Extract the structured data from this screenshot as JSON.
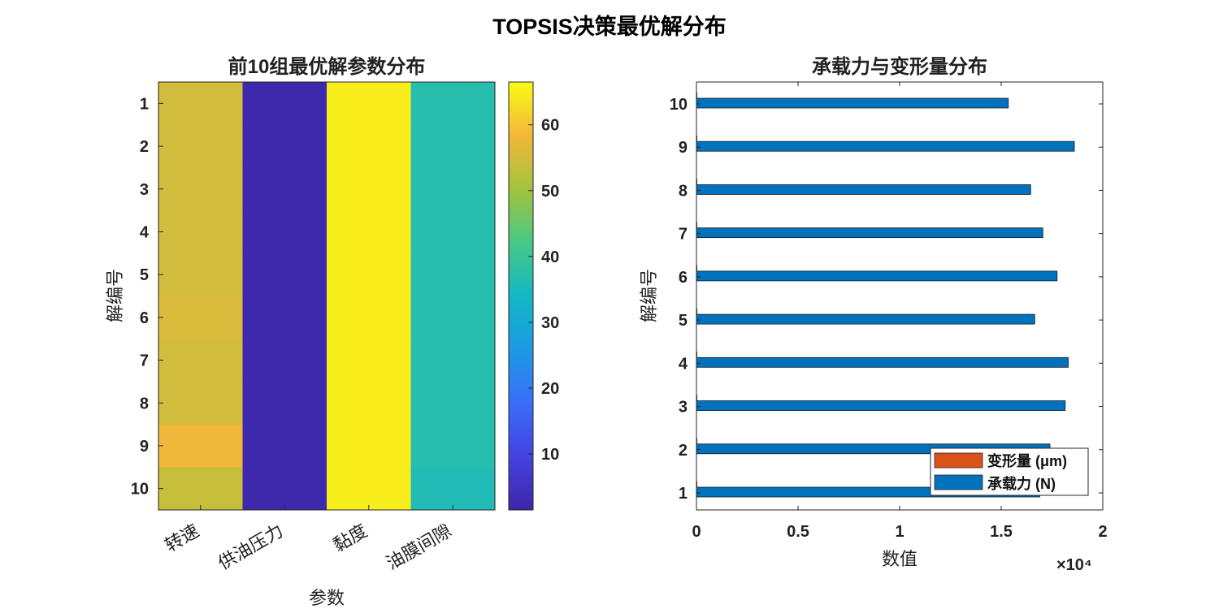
{
  "figure": {
    "title": "TOPSIS决策最优解分布"
  },
  "chart_data": [
    {
      "type": "heatmap",
      "title": "前10组最优解参数分布",
      "xlabel": "参数",
      "ylabel": "解编号",
      "x_categories": [
        "转速",
        "供油压力",
        "黏度",
        "油膜间隙"
      ],
      "y_categories": [
        "1",
        "2",
        "3",
        "4",
        "5",
        "6",
        "7",
        "8",
        "9",
        "10"
      ],
      "values": [
        [
          55,
          2,
          65,
          37
        ],
        [
          55,
          2,
          65,
          37
        ],
        [
          55,
          2,
          65,
          37
        ],
        [
          55,
          2,
          65,
          37
        ],
        [
          55,
          2,
          65,
          37
        ],
        [
          56,
          2,
          65,
          37
        ],
        [
          55,
          2,
          65,
          37
        ],
        [
          55,
          2,
          65,
          37
        ],
        [
          58,
          2,
          65,
          37
        ],
        [
          54,
          2,
          65,
          36
        ]
      ],
      "colorbar": {
        "range": [
          1.5,
          66.5
        ],
        "ticks": [
          10,
          20,
          30,
          40,
          50,
          60
        ]
      },
      "colormap": "parula"
    },
    {
      "type": "bar",
      "orientation": "horizontal",
      "title": "承载力与变形量分布",
      "xlabel": "数值",
      "ylabel": "解编号",
      "x_multiplier": "×10⁴",
      "categories": [
        "1",
        "2",
        "3",
        "4",
        "5",
        "6",
        "7",
        "8",
        "9",
        "10"
      ],
      "series": [
        {
          "name": "变形量 (μm)",
          "color": "#D95319",
          "values": [
            0.5,
            0.5,
            0.5,
            0.5,
            0.5,
            0.5,
            0.5,
            0.5,
            0.5,
            0.5
          ]
        },
        {
          "name": "承载力 (N)",
          "color": "#0072BD",
          "values": [
            16900,
            17400,
            18150,
            18300,
            16650,
            17750,
            17050,
            16450,
            18600,
            15350
          ]
        }
      ],
      "xlim": [
        0,
        20000
      ],
      "xticks": [
        0,
        5000,
        10000,
        15000,
        20000
      ],
      "xtick_labels": [
        "0",
        "0.5",
        "1",
        "1.5",
        "2"
      ],
      "legend_position": "bottom-right"
    }
  ]
}
